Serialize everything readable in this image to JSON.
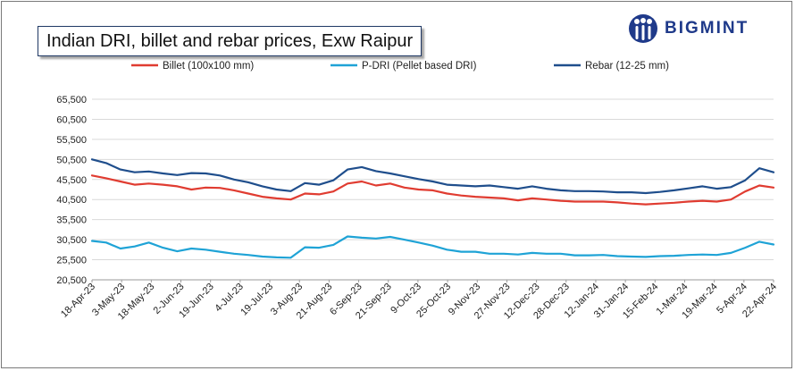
{
  "chart_data": {
    "type": "line",
    "title": "Indian DRI, billet and rebar prices, Exw Raipur",
    "brand": "BIGMINT",
    "ylim": [
      20500,
      65500
    ],
    "y_ticks": [
      20500,
      25500,
      30500,
      35500,
      40500,
      45500,
      50500,
      55500,
      60500,
      65500
    ],
    "y_tick_labels": [
      "20,500",
      "25,500",
      "30,500",
      "35,500",
      "40,500",
      "45,500",
      "50,500",
      "55,500",
      "60,500",
      "65,500"
    ],
    "x_tick_labels": [
      "18-Apr-23",
      "3-May-23",
      "18-May-23",
      "2-Jun-23",
      "19-Jun-23",
      "4-Jul-23",
      "19-Jul-23",
      "3-Aug-23",
      "21-Aug-23",
      "6-Sep-23",
      "21-Sep-23",
      "9-Oct-23",
      "25-Oct-23",
      "9-Nov-23",
      "27-Nov-23",
      "12-Dec-23",
      "28-Dec-23",
      "12-Jan-24",
      "31-Jan-24",
      "15-Feb-24",
      "1-Mar-24",
      "19-Mar-24",
      "5-Apr-24",
      "22-Apr-24"
    ],
    "grid": true,
    "legend_position": "top",
    "colors": {
      "Billet (100x100 mm)": "#e03c31",
      "P-DRI (Pellet based DRI)": "#1fa3d6",
      "Rebar (12-25 mm)": "#1f4e8c"
    },
    "series": [
      {
        "name": "Billet (100x100 mm)",
        "values": [
          46500,
          45800,
          45000,
          44200,
          44500,
          44200,
          43800,
          43000,
          43500,
          43400,
          42800,
          42000,
          41200,
          40800,
          40500,
          42000,
          41800,
          42500,
          44500,
          45000,
          44000,
          44500,
          43500,
          43000,
          42800,
          42000,
          41500,
          41200,
          41000,
          40800,
          40300,
          40800,
          40500,
          40200,
          40000,
          40000,
          40000,
          39800,
          39500,
          39300,
          39500,
          39700,
          40000,
          40200,
          40000,
          40500,
          42500,
          44000,
          43500
        ]
      },
      {
        "name": "P-DRI (Pellet based DRI)",
        "values": [
          30200,
          29800,
          28300,
          28800,
          29800,
          28500,
          27600,
          28300,
          28000,
          27500,
          27000,
          26700,
          26300,
          26100,
          26000,
          28600,
          28500,
          29200,
          31300,
          31000,
          30800,
          31200,
          30500,
          29800,
          29000,
          28000,
          27500,
          27500,
          27000,
          27000,
          26800,
          27200,
          27000,
          27000,
          26600,
          26600,
          26700,
          26400,
          26300,
          26200,
          26400,
          26500,
          26700,
          26800,
          26700,
          27200,
          28500,
          30000,
          29300
        ]
      },
      {
        "name": "Rebar (12-25 mm)",
        "values": [
          50500,
          49600,
          48000,
          47300,
          47500,
          47000,
          46600,
          47100,
          47000,
          46500,
          45500,
          44800,
          43800,
          43000,
          42600,
          44600,
          44200,
          45300,
          48000,
          48600,
          47600,
          47000,
          46300,
          45600,
          45000,
          44200,
          44000,
          43800,
          44000,
          43600,
          43200,
          43800,
          43200,
          42800,
          42600,
          42600,
          42500,
          42300,
          42300,
          42100,
          42400,
          42800,
          43300,
          43800,
          43200,
          43600,
          45300,
          48300,
          47300
        ]
      }
    ]
  }
}
